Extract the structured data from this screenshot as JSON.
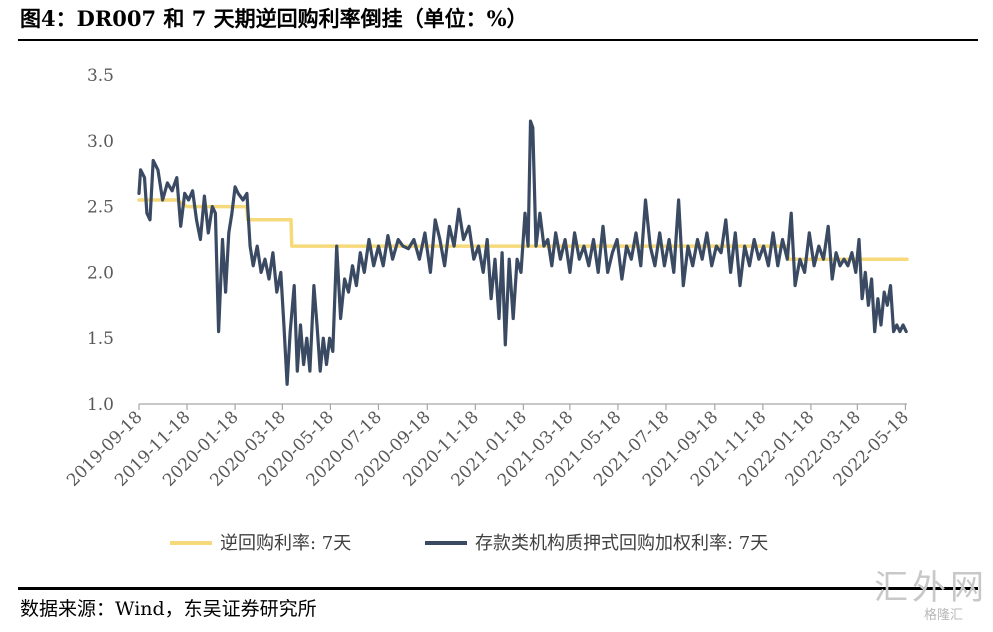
{
  "title": "图4：DR007 和 7 天期逆回购利率倒挂（单位：%）",
  "source": "数据来源：Wind，东吴证券研究所",
  "watermark": {
    "main": "汇外网",
    "sub": "格隆汇"
  },
  "chart_data": {
    "type": "line",
    "x_tick_labels": [
      "2019-09-18",
      "2019-11-18",
      "2020-01-18",
      "2020-03-18",
      "2020-05-18",
      "2020-07-18",
      "2020-09-18",
      "2020-11-18",
      "2021-01-18",
      "2021-03-18",
      "2021-05-18",
      "2021-07-18",
      "2021-09-18",
      "2021-11-18",
      "2022-01-18",
      "2022-03-18",
      "2022-05-18"
    ],
    "x_range": [
      "2019-09-18",
      "2022-05-20"
    ],
    "ylim": [
      1.0,
      3.5
    ],
    "y_ticks": [
      1.0,
      1.5,
      2.0,
      2.5,
      3.0,
      3.5
    ],
    "grid": false,
    "legend_position": "bottom",
    "series": [
      {
        "name": "逆回购利率: 7天",
        "color": "#F5D97A",
        "points": [
          [
            "2019-09-18",
            2.55
          ],
          [
            "2019-11-05",
            2.55
          ],
          [
            "2019-11-18",
            2.5
          ],
          [
            "2020-02-02",
            2.5
          ],
          [
            "2020-02-03",
            2.4
          ],
          [
            "2020-03-29",
            2.4
          ],
          [
            "2020-03-30",
            2.2
          ],
          [
            "2021-12-19",
            2.2
          ],
          [
            "2021-12-20",
            2.1
          ],
          [
            "2022-05-20",
            2.1
          ]
        ]
      },
      {
        "name": "存款类机构质押式回购加权利率: 7天",
        "color": "#3A4A63",
        "points": [
          [
            "2019-09-18",
            2.6
          ],
          [
            "2019-09-20",
            2.78
          ],
          [
            "2019-09-25",
            2.72
          ],
          [
            "2019-09-28",
            2.45
          ],
          [
            "2019-10-02",
            2.4
          ],
          [
            "2019-10-06",
            2.85
          ],
          [
            "2019-10-12",
            2.78
          ],
          [
            "2019-10-18",
            2.55
          ],
          [
            "2019-10-24",
            2.68
          ],
          [
            "2019-10-30",
            2.62
          ],
          [
            "2019-11-05",
            2.72
          ],
          [
            "2019-11-10",
            2.35
          ],
          [
            "2019-11-15",
            2.6
          ],
          [
            "2019-11-20",
            2.55
          ],
          [
            "2019-11-25",
            2.62
          ],
          [
            "2019-11-30",
            2.4
          ],
          [
            "2019-12-05",
            2.25
          ],
          [
            "2019-12-10",
            2.58
          ],
          [
            "2019-12-15",
            2.3
          ],
          [
            "2019-12-20",
            2.5
          ],
          [
            "2019-12-24",
            2.45
          ],
          [
            "2019-12-28",
            1.55
          ],
          [
            "2020-01-02",
            2.25
          ],
          [
            "2020-01-06",
            1.85
          ],
          [
            "2020-01-10",
            2.3
          ],
          [
            "2020-01-14",
            2.45
          ],
          [
            "2020-01-18",
            2.65
          ],
          [
            "2020-01-22",
            2.6
          ],
          [
            "2020-01-28",
            2.55
          ],
          [
            "2020-02-02",
            2.6
          ],
          [
            "2020-02-06",
            2.2
          ],
          [
            "2020-02-10",
            2.05
          ],
          [
            "2020-02-15",
            2.2
          ],
          [
            "2020-02-20",
            2.0
          ],
          [
            "2020-02-25",
            2.1
          ],
          [
            "2020-03-01",
            1.95
          ],
          [
            "2020-03-06",
            2.15
          ],
          [
            "2020-03-11",
            1.85
          ],
          [
            "2020-03-16",
            2.0
          ],
          [
            "2020-03-20",
            1.6
          ],
          [
            "2020-03-24",
            1.15
          ],
          [
            "2020-03-28",
            1.55
          ],
          [
            "2020-04-02",
            1.9
          ],
          [
            "2020-04-06",
            1.25
          ],
          [
            "2020-04-10",
            1.6
          ],
          [
            "2020-04-14",
            1.3
          ],
          [
            "2020-04-18",
            1.5
          ],
          [
            "2020-04-22",
            1.25
          ],
          [
            "2020-04-27",
            1.9
          ],
          [
            "2020-05-01",
            1.6
          ],
          [
            "2020-05-05",
            1.25
          ],
          [
            "2020-05-09",
            1.5
          ],
          [
            "2020-05-13",
            1.3
          ],
          [
            "2020-05-17",
            1.5
          ],
          [
            "2020-05-21",
            1.4
          ],
          [
            "2020-05-26",
            2.2
          ],
          [
            "2020-05-31",
            1.65
          ],
          [
            "2020-06-05",
            1.95
          ],
          [
            "2020-06-10",
            1.85
          ],
          [
            "2020-06-15",
            2.05
          ],
          [
            "2020-06-20",
            1.9
          ],
          [
            "2020-06-25",
            2.15
          ],
          [
            "2020-06-30",
            2.0
          ],
          [
            "2020-07-06",
            2.25
          ],
          [
            "2020-07-12",
            2.05
          ],
          [
            "2020-07-18",
            2.2
          ],
          [
            "2020-07-24",
            2.05
          ],
          [
            "2020-07-30",
            2.28
          ],
          [
            "2020-08-05",
            2.1
          ],
          [
            "2020-08-12",
            2.25
          ],
          [
            "2020-08-18",
            2.2
          ],
          [
            "2020-08-25",
            2.18
          ],
          [
            "2020-09-01",
            2.25
          ],
          [
            "2020-09-08",
            2.1
          ],
          [
            "2020-09-15",
            2.3
          ],
          [
            "2020-09-22",
            2.0
          ],
          [
            "2020-09-28",
            2.4
          ],
          [
            "2020-10-04",
            2.25
          ],
          [
            "2020-10-10",
            2.05
          ],
          [
            "2020-10-16",
            2.35
          ],
          [
            "2020-10-22",
            2.2
          ],
          [
            "2020-10-28",
            2.48
          ],
          [
            "2020-11-03",
            2.25
          ],
          [
            "2020-11-10",
            2.35
          ],
          [
            "2020-11-16",
            2.1
          ],
          [
            "2020-11-22",
            2.2
          ],
          [
            "2020-11-28",
            2.0
          ],
          [
            "2020-12-03",
            2.25
          ],
          [
            "2020-12-08",
            1.8
          ],
          [
            "2020-12-13",
            2.1
          ],
          [
            "2020-12-18",
            1.65
          ],
          [
            "2020-12-22",
            2.15
          ],
          [
            "2020-12-26",
            1.45
          ],
          [
            "2020-12-31",
            2.1
          ],
          [
            "2021-01-05",
            1.65
          ],
          [
            "2021-01-10",
            2.1
          ],
          [
            "2021-01-15",
            2.0
          ],
          [
            "2021-01-20",
            2.45
          ],
          [
            "2021-01-24",
            2.2
          ],
          [
            "2021-01-27",
            3.15
          ],
          [
            "2021-01-30",
            3.1
          ],
          [
            "2021-02-03",
            2.2
          ],
          [
            "2021-02-08",
            2.45
          ],
          [
            "2021-02-13",
            2.2
          ],
          [
            "2021-02-18",
            2.25
          ],
          [
            "2021-02-23",
            2.05
          ],
          [
            "2021-02-28",
            2.3
          ],
          [
            "2021-03-06",
            2.1
          ],
          [
            "2021-03-12",
            2.25
          ],
          [
            "2021-03-18",
            2.0
          ],
          [
            "2021-03-24",
            2.3
          ],
          [
            "2021-03-30",
            2.1
          ],
          [
            "2021-04-05",
            2.2
          ],
          [
            "2021-04-11",
            2.05
          ],
          [
            "2021-04-17",
            2.25
          ],
          [
            "2021-04-23",
            2.0
          ],
          [
            "2021-04-29",
            2.35
          ],
          [
            "2021-05-05",
            2.0
          ],
          [
            "2021-05-11",
            2.15
          ],
          [
            "2021-05-17",
            2.25
          ],
          [
            "2021-05-23",
            1.95
          ],
          [
            "2021-05-29",
            2.2
          ],
          [
            "2021-06-04",
            2.1
          ],
          [
            "2021-06-10",
            2.3
          ],
          [
            "2021-06-16",
            2.05
          ],
          [
            "2021-06-22",
            2.55
          ],
          [
            "2021-06-28",
            2.2
          ],
          [
            "2021-07-04",
            2.05
          ],
          [
            "2021-07-10",
            2.3
          ],
          [
            "2021-07-16",
            2.05
          ],
          [
            "2021-07-22",
            2.25
          ],
          [
            "2021-07-28",
            2.0
          ],
          [
            "2021-08-03",
            2.55
          ],
          [
            "2021-08-09",
            1.9
          ],
          [
            "2021-08-15",
            2.2
          ],
          [
            "2021-08-21",
            2.05
          ],
          [
            "2021-08-27",
            2.25
          ],
          [
            "2021-09-02",
            2.1
          ],
          [
            "2021-09-08",
            2.3
          ],
          [
            "2021-09-14",
            2.05
          ],
          [
            "2021-09-20",
            2.2
          ],
          [
            "2021-09-26",
            2.15
          ],
          [
            "2021-10-02",
            2.4
          ],
          [
            "2021-10-08",
            2.0
          ],
          [
            "2021-10-14",
            2.3
          ],
          [
            "2021-10-20",
            1.9
          ],
          [
            "2021-10-26",
            2.2
          ],
          [
            "2021-11-01",
            2.05
          ],
          [
            "2021-11-07",
            2.25
          ],
          [
            "2021-11-13",
            2.1
          ],
          [
            "2021-11-19",
            2.2
          ],
          [
            "2021-11-25",
            2.05
          ],
          [
            "2021-12-01",
            2.3
          ],
          [
            "2021-12-07",
            2.05
          ],
          [
            "2021-12-13",
            2.25
          ],
          [
            "2021-12-19",
            2.1
          ],
          [
            "2021-12-24",
            2.45
          ],
          [
            "2021-12-29",
            1.9
          ],
          [
            "2022-01-04",
            2.1
          ],
          [
            "2022-01-10",
            2.0
          ],
          [
            "2022-01-16",
            2.3
          ],
          [
            "2022-01-22",
            2.05
          ],
          [
            "2022-01-28",
            2.2
          ],
          [
            "2022-02-03",
            2.1
          ],
          [
            "2022-02-09",
            2.35
          ],
          [
            "2022-02-14",
            1.95
          ],
          [
            "2022-02-19",
            2.15
          ],
          [
            "2022-02-24",
            2.05
          ],
          [
            "2022-03-01",
            2.1
          ],
          [
            "2022-03-06",
            2.05
          ],
          [
            "2022-03-11",
            2.15
          ],
          [
            "2022-03-16",
            2.0
          ],
          [
            "2022-03-20",
            2.25
          ],
          [
            "2022-03-24",
            1.8
          ],
          [
            "2022-03-28",
            2.0
          ],
          [
            "2022-04-01",
            1.75
          ],
          [
            "2022-04-05",
            1.95
          ],
          [
            "2022-04-09",
            1.55
          ],
          [
            "2022-04-13",
            1.8
          ],
          [
            "2022-04-17",
            1.6
          ],
          [
            "2022-04-21",
            1.85
          ],
          [
            "2022-04-25",
            1.75
          ],
          [
            "2022-04-29",
            1.9
          ],
          [
            "2022-05-03",
            1.55
          ],
          [
            "2022-05-07",
            1.6
          ],
          [
            "2022-05-11",
            1.55
          ],
          [
            "2022-05-15",
            1.6
          ],
          [
            "2022-05-19",
            1.55
          ]
        ]
      }
    ]
  }
}
